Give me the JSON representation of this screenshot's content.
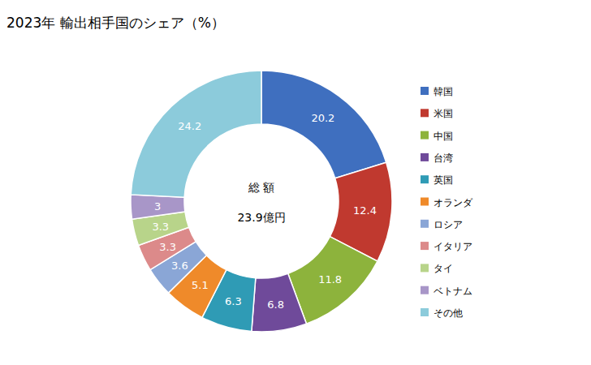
{
  "chart_data": {
    "type": "pie",
    "title": "2023年 輸出相手国のシェア（%）",
    "center_title": "総 額",
    "center_text": "23.9億円",
    "categories": [
      "韓国",
      "米国",
      "中国",
      "台湾",
      "英国",
      "オランダ",
      "ロシア",
      "イタリア",
      "タイ",
      "ベトナム",
      "その他"
    ],
    "values": [
      20.2,
      12.4,
      11.8,
      6.8,
      6.3,
      5.1,
      3.6,
      3.3,
      3.3,
      3.0,
      24.2
    ],
    "colors": [
      "#3f6fbf",
      "#c0392f",
      "#8db33c",
      "#6f4a9a",
      "#2f9bb5",
      "#ef8a2a",
      "#8aa6d6",
      "#dc8a8a",
      "#b8d48a",
      "#a896c8",
      "#8ccbdb"
    ],
    "data_labels": true,
    "legend": "right"
  }
}
